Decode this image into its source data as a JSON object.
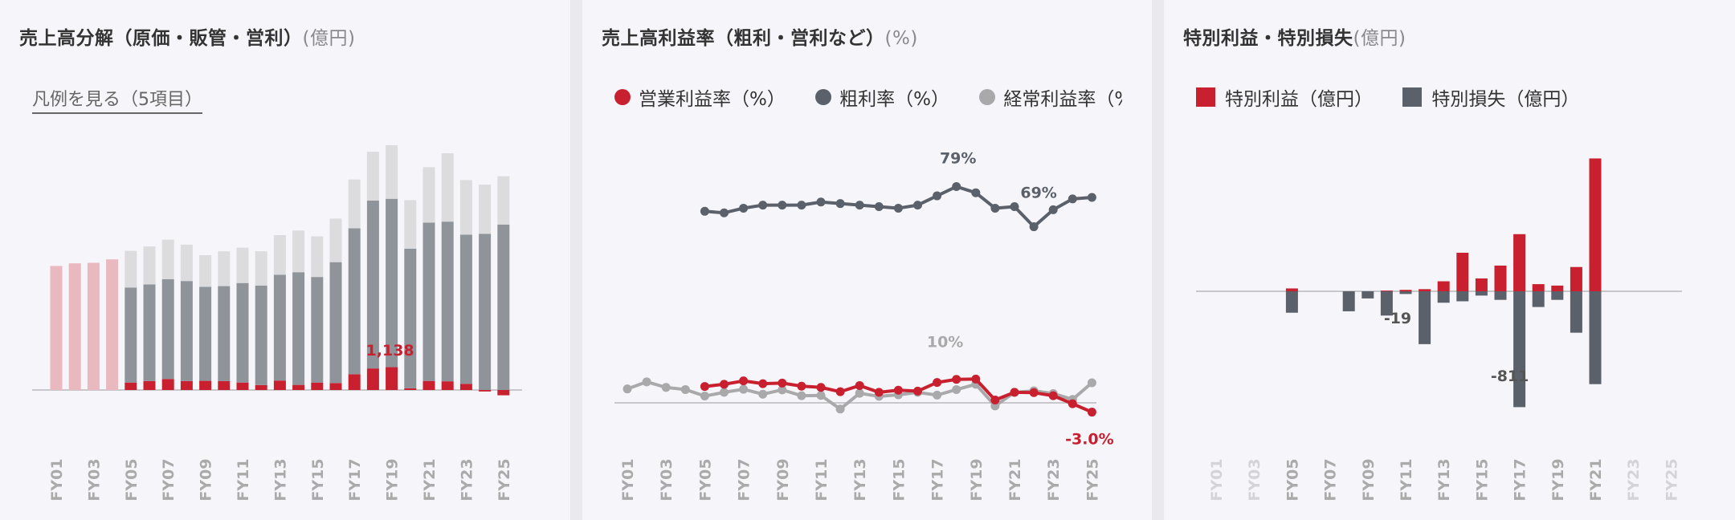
{
  "panels": {
    "revenue": {
      "title": "売上高分解（原価・販管・営利）",
      "unit": "(億円)",
      "legend_link": "凡例を見る（5項目）"
    },
    "margin": {
      "title": "売上高利益率（粗利・営利など）",
      "unit": "(%)",
      "legend": [
        {
          "label": "営業利益率（%）",
          "color": "#c8202f"
        },
        {
          "label": "粗利率（%）",
          "color": "#5a616b"
        },
        {
          "label": "経常利益率（%）",
          "color": "#a9a9ab"
        }
      ]
    },
    "special": {
      "title": "特別利益・特別損失",
      "unit": "(億円)",
      "legend": [
        {
          "label": "特別利益（億円）",
          "color": "#c8202f"
        },
        {
          "label": "特別損失（億円）",
          "color": "#5a616b"
        }
      ]
    }
  },
  "colors": {
    "red": "#c8202f",
    "gray": "#5a616b",
    "lightgray": "#a9a9ab",
    "pink": "#e9b9bf",
    "barGray": "#8f949b",
    "barLight": "#dcdcde"
  },
  "chart_data": [
    {
      "type": "bar",
      "stacked": true,
      "categories": [
        "FY01",
        "FY02",
        "FY03",
        "FY04",
        "FY05",
        "FY06",
        "FY07",
        "FY08",
        "FY09",
        "FY10",
        "FY11",
        "FY12",
        "FY13",
        "FY14",
        "FY15",
        "FY16",
        "FY17",
        "FY18",
        "FY19",
        "FY20",
        "FY21",
        "FY22",
        "FY23",
        "FY24",
        "FY25"
      ],
      "tick_labels": [
        "FY01",
        "FY03",
        "FY05",
        "FY07",
        "FY09",
        "FY11",
        "FY13",
        "FY15",
        "FY17",
        "FY19",
        "FY21",
        "FY23",
        "FY25"
      ],
      "series": [
        {
          "values": [
            4700,
            4800,
            4820,
            4950,
            null,
            null,
            null,
            null,
            null,
            null,
            null,
            null,
            null,
            null,
            null,
            null,
            null,
            null,
            null,
            null,
            null,
            null,
            null,
            null,
            null
          ]
        },
        {
          "values": [
            null,
            null,
            null,
            null,
            283,
            339,
            417,
            339,
            347,
            336,
            283,
            188,
            358,
            193,
            283,
            264,
            596,
            817,
            865,
            64,
            344,
            330,
            235,
            -56,
            -200
          ]
        },
        {
          "values": [
            null,
            null,
            null,
            null,
            3600,
            3660,
            3780,
            3790,
            3560,
            3600,
            3770,
            3770,
            4010,
            4270,
            4000,
            4580,
            5530,
            6360,
            6380,
            5290,
            6000,
            6050,
            5650,
            5920,
            6270
          ]
        },
        {
          "values": [
            null,
            null,
            null,
            null,
            1390,
            1440,
            1500,
            1380,
            1200,
            1320,
            1340,
            1300,
            1500,
            1580,
            1540,
            1650,
            1850,
            1850,
            2030,
            1840,
            2100,
            2590,
            2070,
            1860,
            1830
          ]
        }
      ],
      "annotations": [
        {
          "category": "FY19",
          "text": "1,138"
        }
      ],
      "ylim": [
        -200,
        9000
      ]
    },
    {
      "type": "line",
      "categories": [
        "FY01",
        "FY02",
        "FY03",
        "FY04",
        "FY05",
        "FY06",
        "FY07",
        "FY08",
        "FY09",
        "FY10",
        "FY11",
        "FY12",
        "FY13",
        "FY14",
        "FY15",
        "FY16",
        "FY17",
        "FY18",
        "FY19",
        "FY20",
        "FY21",
        "FY22",
        "FY23",
        "FY24",
        "FY25"
      ],
      "tick_labels": [
        "FY01",
        "FY03",
        "FY05",
        "FY07",
        "FY09",
        "FY11",
        "FY13",
        "FY15",
        "FY17",
        "FY19",
        "FY21",
        "FY23",
        "FY25"
      ],
      "series": [
        {
          "name": "営業利益率（%）",
          "values": [
            null,
            null,
            null,
            null,
            5.3,
            6.0,
            7.1,
            6.2,
            6.4,
            5.4,
            5.0,
            3.6,
            5.6,
            3.4,
            4.1,
            3.8,
            6.6,
            7.6,
            7.7,
            0.9,
            3.4,
            3.3,
            2.3,
            -0.3,
            -3.0
          ]
        },
        {
          "name": "粗利率（%）",
          "values": [
            null,
            null,
            null,
            null,
            62,
            61.5,
            63,
            64,
            64,
            64,
            65,
            64.5,
            64,
            63.5,
            63,
            64,
            67,
            70,
            68,
            63,
            63.5,
            57,
            62.5,
            66,
            66.5
          ]
        },
        {
          "name": "経常利益率（%）",
          "values": [
            4.5,
            6.8,
            5.0,
            4.3,
            2.2,
            3.4,
            4.4,
            2.8,
            4.2,
            2.3,
            2.4,
            -2.0,
            3.1,
            2.1,
            2.6,
            3.4,
            2.5,
            4.3,
            6.0,
            -1.0,
            3.4,
            3.9,
            3.0,
            1.1,
            6.5
          ]
        }
      ],
      "annotations": [
        {
          "text": "79%"
        },
        {
          "text": "69%"
        },
        {
          "text": "10%"
        },
        {
          "text": "-3.0%"
        }
      ],
      "ylim": [
        -5,
        83
      ]
    },
    {
      "type": "bar",
      "categories": [
        "FY01",
        "FY02",
        "FY03",
        "FY04",
        "FY05",
        "FY06",
        "FY07",
        "FY08",
        "FY09",
        "FY10",
        "FY11",
        "FY12",
        "FY13",
        "FY14",
        "FY15",
        "FY16",
        "FY17",
        "FY18",
        "FY19",
        "FY20",
        "FY21",
        "FY22",
        "FY23",
        "FY24",
        "FY25"
      ],
      "tick_labels": [
        "FY01",
        "FY03",
        "FY05",
        "FY07",
        "FY09",
        "FY11",
        "FY13",
        "FY15",
        "FY17",
        "FY19",
        "FY21",
        "FY23",
        "FY25"
      ],
      "series": [
        {
          "name": "特別利益（億円）",
          "values": [
            null,
            null,
            null,
            null,
            20,
            0,
            0,
            0,
            0,
            5,
            10,
            15,
            70,
            270,
            90,
            180,
            400,
            50,
            40,
            170,
            930,
            null,
            null,
            null,
            null
          ]
        },
        {
          "name": "特別損失（億円）",
          "values": [
            null,
            null,
            null,
            null,
            -150,
            0,
            0,
            -140,
            -50,
            -170,
            -19,
            -370,
            -80,
            -70,
            -30,
            -60,
            -811,
            -110,
            -60,
            -290,
            -650,
            null,
            null,
            null,
            null
          ]
        }
      ],
      "annotations": [
        {
          "category": "FY11",
          "text": "-19"
        },
        {
          "category": "FY17",
          "text": "-811"
        }
      ],
      "ylim": [
        -950,
        950
      ]
    }
  ]
}
